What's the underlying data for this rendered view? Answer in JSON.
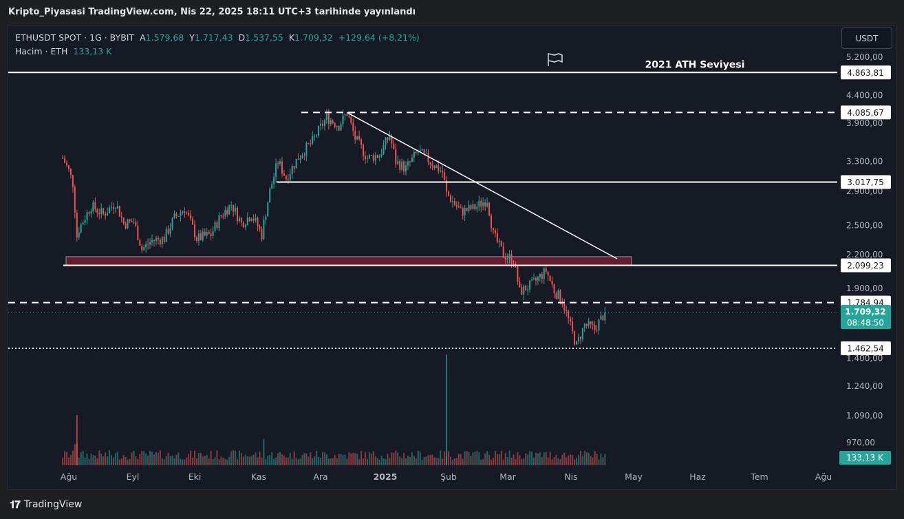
{
  "header": {
    "title": "Kripto_Piyasasi TradingView.com, Nis 22, 2025 18:11 UTC+3 tarihinde yayınlandı"
  },
  "legend": {
    "symbol": "ETHUSDT SPOT · 1G · BYBIT",
    "open_label": "A",
    "open": "1.579,68",
    "high_label": "Y",
    "high": "1.717,43",
    "low_label": "D",
    "low": "1.537,55",
    "close_label": "K",
    "close": "1.709,32",
    "change": "+129,64 (+8,21%)",
    "volume_label": "Hacim · ETH",
    "volume": "133,13 K"
  },
  "toolbar": {
    "currency": "USDT"
  },
  "footer": {
    "brand": "TradingView"
  },
  "colors": {
    "up": "#26a69a",
    "down": "#ef5350",
    "background": "#161a25",
    "zone": "#6b1a2e"
  },
  "chart_data": {
    "type": "candlestick",
    "title": "",
    "y_scale": "log",
    "y_ticks": [
      {
        "value": 5200,
        "label": "5.200,00"
      },
      {
        "value": 4400,
        "label": "4.400,00"
      },
      {
        "value": 3900,
        "label": "3.900,00"
      },
      {
        "value": 3300,
        "label": "3.300,00"
      },
      {
        "value": 2900,
        "label": "2.900,00"
      },
      {
        "value": 2500,
        "label": "2.500,00"
      },
      {
        "value": 2200,
        "label": "2.200,00"
      },
      {
        "value": 1900,
        "label": "1.900,00"
      },
      {
        "value": 1400,
        "label": "1.400,00"
      },
      {
        "value": 1240,
        "label": "1.240,00"
      },
      {
        "value": 1090,
        "label": "1.090,00"
      },
      {
        "value": 970,
        "label": "970,00"
      }
    ],
    "x_ticks": [
      "Ağu",
      "Eyl",
      "Eki",
      "Kas",
      "Ara",
      "2025",
      "Şub",
      "Mar",
      "Nis",
      "May",
      "Haz",
      "Tem",
      "Ağu"
    ],
    "levels": [
      {
        "value": 4863.81,
        "label": "4.863,81",
        "style": "solid",
        "note": "2021 ATH Seviyesi"
      },
      {
        "value": 4085.67,
        "label": "4.085,67",
        "style": "dashed",
        "note": ""
      },
      {
        "value": 3017.75,
        "label": "3.017,75",
        "style": "solid",
        "note": ""
      },
      {
        "value": 2099.23,
        "label": "2.099,23",
        "style": "solid",
        "note": ""
      },
      {
        "value": 1784.94,
        "label": "1.784,94",
        "style": "dashed",
        "note": ""
      },
      {
        "value": 1462.54,
        "label": "1.462,54",
        "style": "dotted",
        "note": ""
      }
    ],
    "current_price": {
      "label": "1.709,32",
      "countdown": "08:48:50"
    },
    "volume_badge": "133,13 K",
    "zone": {
      "from": 2099.23,
      "to": 2180
    },
    "trendline": {
      "from_price": 4085.67,
      "to_price": 2160,
      "from_date": "Ara 16",
      "to_date": "Nis 28"
    },
    "price_path": [
      [
        "Tem 29",
        3350
      ],
      [
        "Ağu 1",
        3170
      ],
      [
        "Ağu 3",
        3000
      ],
      [
        "Ağu 5",
        2380
      ],
      [
        "Ağu 6",
        2460
      ],
      [
        "Ağu 12",
        2720
      ],
      [
        "Ağu 18",
        2620
      ],
      [
        "Ağu 24",
        2760
      ],
      [
        "Ağu 28",
        2520
      ],
      [
        "Eyl 2",
        2540
      ],
      [
        "Eyl 6",
        2250
      ],
      [
        "Eyl 11",
        2340
      ],
      [
        "Eyl 17",
        2360
      ],
      [
        "Eyl 22",
        2580
      ],
      [
        "Eyl 27",
        2690
      ],
      [
        "Eki 3",
        2360
      ],
      [
        "Eki 10",
        2400
      ],
      [
        "Eki 15",
        2610
      ],
      [
        "Eki 20",
        2740
      ],
      [
        "Eki 25",
        2520
      ],
      [
        "Eki 30",
        2620
      ],
      [
        "Kas 4",
        2400
      ],
      [
        "Kas 8",
        2900
      ],
      [
        "Kas 12",
        3300
      ],
      [
        "Kas 16",
        3070
      ],
      [
        "Kas 22",
        3360
      ],
      [
        "Kas 29",
        3600
      ],
      [
        "Ara 6",
        4000
      ],
      [
        "Ara 12",
        3860
      ],
      [
        "Ara 16",
        4080
      ],
      [
        "Ara 20",
        3650
      ],
      [
        "Ara 26",
        3350
      ],
      [
        "Oca 1",
        3400
      ],
      [
        "Oca 6",
        3700
      ],
      [
        "Oca 9",
        3300
      ],
      [
        "Oca 14",
        3200
      ],
      [
        "Oca 20",
        3450
      ],
      [
        "Oca 26",
        3300
      ],
      [
        "Şub 1",
        3150
      ],
      [
        "Şub 3",
        2870
      ],
      [
        "Şub 10",
        2650
      ],
      [
        "Şub 17",
        2700
      ],
      [
        "Şub 23",
        2800
      ],
      [
        "Şub 26",
        2400
      ],
      [
        "Mar 3",
        2200
      ],
      [
        "Mar 8",
        2150
      ],
      [
        "Mar 11",
        1870
      ],
      [
        "Mar 17",
        1930
      ],
      [
        "Mar 24",
        2050
      ],
      [
        "Mar 28",
        1880
      ],
      [
        "Nis 1",
        1800
      ],
      [
        "Nis 6",
        1560
      ],
      [
        "Nis 8",
        1480
      ],
      [
        "Nis 12",
        1620
      ],
      [
        "Nis 17",
        1590
      ],
      [
        "Nis 22",
        1709.32
      ]
    ]
  }
}
